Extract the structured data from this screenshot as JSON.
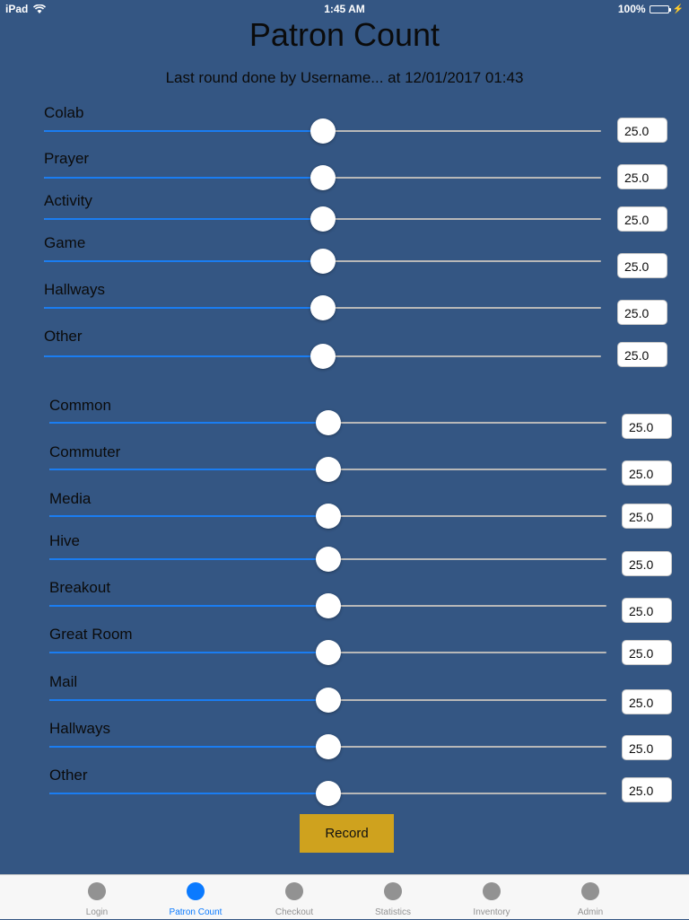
{
  "status_bar": {
    "device": "iPad",
    "time": "1:45 AM",
    "battery": "100%"
  },
  "title": "Patron Count",
  "subtitle": "Last round done by Username... at 12/01/2017 01:43",
  "group1": [
    {
      "label": "Colab",
      "value": "25.0",
      "level": 0.5
    },
    {
      "label": "Prayer",
      "value": "25.0",
      "level": 0.5
    },
    {
      "label": "Activity",
      "value": "25.0",
      "level": 0.5
    },
    {
      "label": "Game",
      "value": "25.0",
      "level": 0.5
    },
    {
      "label": "Hallways",
      "value": "25.0",
      "level": 0.5
    },
    {
      "label": "Other",
      "value": "25.0",
      "level": 0.5
    }
  ],
  "group2": [
    {
      "label": "Common",
      "value": "25.0",
      "level": 0.5
    },
    {
      "label": "Commuter",
      "value": "25.0",
      "level": 0.5
    },
    {
      "label": "Media",
      "value": "25.0",
      "level": 0.5
    },
    {
      "label": "Hive",
      "value": "25.0",
      "level": 0.5
    },
    {
      "label": "Breakout",
      "value": "25.0",
      "level": 0.5
    },
    {
      "label": "Great Room",
      "value": "25.0",
      "level": 0.5
    },
    {
      "label": "Mail",
      "value": "25.0",
      "level": 0.5
    },
    {
      "label": "Hallways",
      "value": "25.0",
      "level": 0.5
    },
    {
      "label": "Other",
      "value": "25.0",
      "level": 0.5
    }
  ],
  "record_label": "Record",
  "tabs": [
    {
      "label": "Login",
      "active": false
    },
    {
      "label": "Patron Count",
      "active": true
    },
    {
      "label": "Checkout",
      "active": false
    },
    {
      "label": "Statistics",
      "active": false
    },
    {
      "label": "Inventory",
      "active": false
    },
    {
      "label": "Admin",
      "active": false
    }
  ],
  "colors": {
    "background": "#345683",
    "slider_min": "#1a7df2",
    "record_button": "#cfa21e",
    "tab_active": "#0a7aff"
  }
}
